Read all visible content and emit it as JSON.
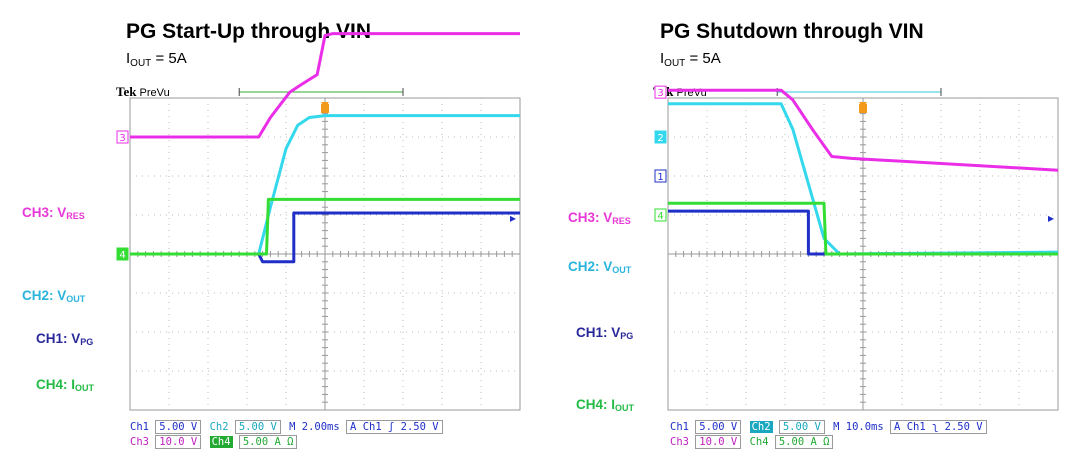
{
  "colors": {
    "ch1": "#1f2fc7",
    "ch2": "#34d8ec",
    "ch3": "#ea2ee8",
    "ch4": "#33dd33",
    "grid": "#bbbbbb",
    "frame": "#9a9a9a",
    "trigger": "#f29a1c",
    "label_ch1": "#29289a",
    "label_ch2": "#2ab4dc",
    "label_ch3": "#e838d8",
    "label_ch4": "#22bb44"
  },
  "chart_data": [
    {
      "type": "line",
      "title": "PG Start-Up through VIN",
      "subtitle": {
        "main": "I",
        "sub": "OUT",
        "rest": " = 5A"
      },
      "header": {
        "brand": "Tek",
        "mode": "PreVu"
      },
      "x_divisions": 10,
      "y_divisions": 8,
      "grid": true,
      "channel_labels": {
        "ch3": {
          "main": "CH3: V",
          "sub": "RES",
          "marker": "3"
        },
        "ch2": {
          "main": "CH2: V",
          "sub": "OUT",
          "marker": "2"
        },
        "ch1": {
          "main": "CH1: V",
          "sub": "PG",
          "marker": "1"
        },
        "ch4": {
          "main": "CH4: I",
          "sub": "OUT",
          "marker": "4"
        }
      },
      "series": [
        {
          "name": "CH3",
          "channel": "ch3",
          "x": [
            0,
            3.3,
            3.6,
            4.1,
            4.4,
            4.8,
            5.0,
            5.2,
            10
          ],
          "y": [
            3.0,
            3.0,
            3.5,
            4.15,
            4.35,
            4.6,
            5.6,
            5.65,
            5.65
          ]
        },
        {
          "name": "CH2",
          "channel": "ch2",
          "x": [
            0,
            3.3,
            3.6,
            4.0,
            4.3,
            4.6,
            5.0,
            10
          ],
          "y": [
            0.0,
            0.0,
            1.2,
            2.7,
            3.3,
            3.5,
            3.55,
            3.55
          ]
        },
        {
          "name": "CH1",
          "channel": "ch1",
          "x": [
            0,
            3.3,
            3.4,
            4.2,
            4.2,
            10
          ],
          "y": [
            0.0,
            0.0,
            -0.2,
            -0.2,
            1.05,
            1.05
          ]
        },
        {
          "name": "CH4",
          "channel": "ch4",
          "x": [
            0,
            3.5,
            3.55,
            10
          ],
          "y": [
            0.0,
            0.0,
            1.4,
            1.4
          ]
        }
      ],
      "reference_levels": {
        "ch3": 3.0,
        "ch2": 0.0,
        "ch1": 0.0,
        "ch4": 0.0
      },
      "status": {
        "row1": [
          "Ch1",
          "5.00 V",
          "Ch2",
          "5.00 V",
          "M 2.00ms",
          "A",
          "Ch1",
          "2.50 V"
        ],
        "row2": [
          "Ch3",
          "10.0 V",
          "Ch4",
          "5.00 A Ω"
        ]
      }
    },
    {
      "type": "line",
      "title": "PG Shutdown through VIN",
      "subtitle": {
        "main": "I",
        "sub": "OUT",
        "rest": " = 5A"
      },
      "header": {
        "brand": "Tek",
        "mode": "PreVu"
      },
      "x_divisions": 10,
      "y_divisions": 8,
      "grid": true,
      "channel_labels": {
        "ch3": {
          "main": "CH3: V",
          "sub": "RES",
          "marker": "3"
        },
        "ch2": {
          "main": "CH2: V",
          "sub": "OUT",
          "marker": "2"
        },
        "ch1": {
          "main": "CH1: V",
          "sub": "PG",
          "marker": "1"
        },
        "ch4": {
          "main": "CH4: I",
          "sub": "OUT",
          "marker": "4"
        }
      },
      "series": [
        {
          "name": "CH3",
          "channel": "ch3",
          "x": [
            0,
            2.9,
            3.2,
            3.7,
            4.2,
            4.7,
            10
          ],
          "y": [
            4.2,
            4.2,
            3.95,
            3.2,
            2.5,
            2.45,
            2.15
          ]
        },
        {
          "name": "CH2",
          "channel": "ch2",
          "x": [
            0,
            2.9,
            3.2,
            3.6,
            4.0,
            4.4,
            10
          ],
          "y": [
            3.85,
            3.85,
            3.2,
            1.8,
            0.4,
            0.0,
            0.05
          ]
        },
        {
          "name": "CH1",
          "channel": "ch1",
          "x": [
            0,
            3.6,
            3.6,
            10
          ],
          "y": [
            1.1,
            1.1,
            0.0,
            0.0
          ]
        },
        {
          "name": "CH4",
          "channel": "ch4",
          "x": [
            0,
            4.0,
            4.05,
            10
          ],
          "y": [
            1.3,
            1.3,
            0.0,
            0.0
          ]
        }
      ],
      "reference_levels": {
        "ch3": 4.15,
        "ch2": 3.0,
        "ch1": 2.0,
        "ch4": 1.0
      },
      "status": {
        "row1": [
          "Ch1",
          "5.00 V",
          "Ch2",
          "5.00 V",
          "M 10.0ms",
          "A",
          "Ch1",
          "2.50 V"
        ],
        "row2": [
          "Ch3",
          "10.0 V",
          "Ch4",
          "5.00 A Ω"
        ]
      }
    }
  ]
}
